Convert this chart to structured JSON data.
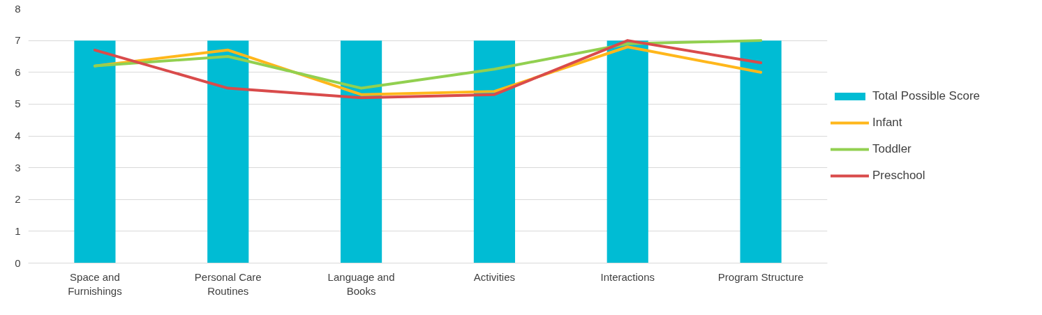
{
  "chart_data": {
    "type": "bar",
    "categories": [
      "Space and Furnishings",
      "Personal Care Routines",
      "Language and Books",
      "Activities",
      "Interactions",
      "Program Structure"
    ],
    "series": [
      {
        "name": "Total Possible Score",
        "color": "#00bcd4",
        "values": [
          7,
          7,
          7,
          7,
          7,
          7
        ]
      },
      {
        "name": "Infant",
        "type": "line",
        "color": "#ffb71b",
        "values": [
          6.2,
          6.7,
          5.3,
          5.4,
          6.8,
          6.0
        ]
      },
      {
        "name": "Toddler",
        "type": "line",
        "color": "#92d050",
        "values": [
          6.2,
          6.5,
          5.5,
          6.1,
          6.9,
          7.0
        ]
      },
      {
        "name": "Preschool",
        "type": "line",
        "color": "#d94b4b",
        "values": [
          6.7,
          5.5,
          5.2,
          5.3,
          7.0,
          6.3
        ]
      }
    ],
    "ylim": [
      0,
      8
    ],
    "yticks": [
      0,
      1,
      2,
      3,
      4,
      5,
      6,
      7,
      8
    ],
    "grid": "y",
    "legend": "right"
  }
}
